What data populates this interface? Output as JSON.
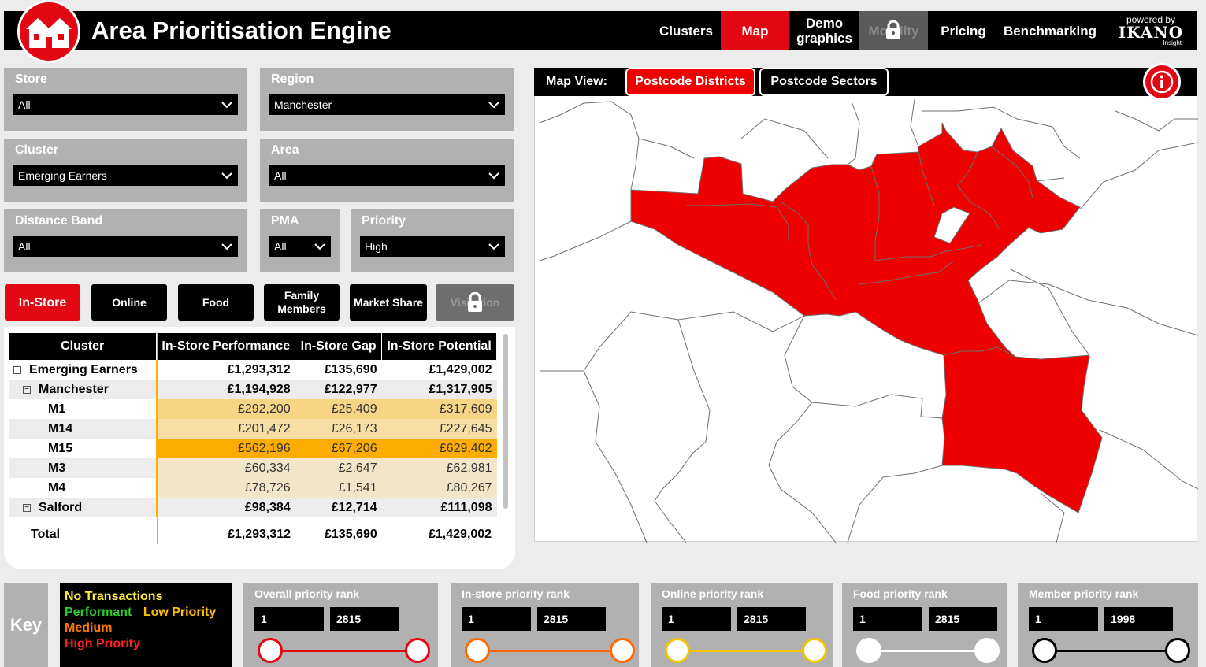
{
  "header": {
    "title": "Area Prioritisation Engine",
    "nav": [
      "Clusters",
      "Map",
      "Demo graphics",
      "Mobility",
      "Pricing",
      "Benchmarking"
    ],
    "powered_by": "powered by",
    "brand": "IKANO",
    "brand_sub": "Insight"
  },
  "filters": {
    "store": {
      "label": "Store",
      "value": "All"
    },
    "region": {
      "label": "Region",
      "value": "Manchester"
    },
    "cluster": {
      "label": "Cluster",
      "value": "Emerging Earners"
    },
    "area": {
      "label": "Area",
      "value": "All"
    },
    "distance_band": {
      "label": "Distance Band",
      "value": "All"
    },
    "pma": {
      "label": "PMA",
      "value": "All"
    },
    "priority": {
      "label": "Priority",
      "value": "High"
    }
  },
  "tabs": [
    "In-Store",
    "Online",
    "Food",
    "Family Members",
    "Market Share",
    "Visitation"
  ],
  "table": {
    "headers": [
      "Cluster",
      "In-Store Performance",
      "In-Store Gap",
      "In-Store Potential"
    ],
    "rows": [
      {
        "name": "Emerging Earners",
        "perf": "£1,293,312",
        "gap": "£135,690",
        "pot": "£1,429,002"
      },
      {
        "name": "Manchester",
        "perf": "£1,194,928",
        "gap": "£122,977",
        "pot": "£1,317,905"
      },
      {
        "name": "M1",
        "perf": "£292,200",
        "gap": "£25,409",
        "pot": "£317,609"
      },
      {
        "name": "M14",
        "perf": "£201,472",
        "gap": "£26,173",
        "pot": "£227,645"
      },
      {
        "name": "M15",
        "perf": "£562,196",
        "gap": "£67,206",
        "pot": "£629,402"
      },
      {
        "name": "M3",
        "perf": "£60,334",
        "gap": "£2,647",
        "pot": "£62,981"
      },
      {
        "name": "M4",
        "perf": "£78,726",
        "gap": "£1,541",
        "pot": "£80,267"
      },
      {
        "name": "Salford",
        "perf": "£98,384",
        "gap": "£12,714",
        "pot": "£111,098"
      }
    ],
    "total": {
      "name": "Total",
      "perf": "£1,293,312",
      "gap": "£135,690",
      "pot": "£1,429,002"
    }
  },
  "map": {
    "view_label": "Map View:",
    "btn_districts": "Postcode Districts",
    "btn_sectors": "Postcode Sectors"
  },
  "key": {
    "label": "Key",
    "legend": {
      "no_tx": "No Transactions",
      "performant": "Performant",
      "low": "Low Priority",
      "medium": "Medium",
      "high": "High Priority"
    }
  },
  "ranks": [
    {
      "label": "Overall priority rank",
      "min": "1",
      "max": "2815",
      "color": "#e30613"
    },
    {
      "label": "In-store priority rank",
      "min": "1",
      "max": "2815",
      "color": "#ff6a00"
    },
    {
      "label": "Online priority rank",
      "min": "1",
      "max": "2815",
      "color": "#f5c400"
    },
    {
      "label": "Food priority rank",
      "min": "1",
      "max": "2815",
      "color": "#ffffff"
    },
    {
      "label": "Member priority rank",
      "min": "1",
      "max": "1998",
      "color": "#000000"
    }
  ],
  "colors": {
    "accent": "#e30613",
    "heat_high": "#ffac00",
    "heat_mid": "#f7d584",
    "heat_low": "#f3e6c8",
    "legend_no_tx": "#ffeb3b",
    "legend_performant": "#2ecc2e",
    "legend_low": "#ffc000",
    "legend_medium": "#ff7a00",
    "legend_high": "#ff2020"
  }
}
